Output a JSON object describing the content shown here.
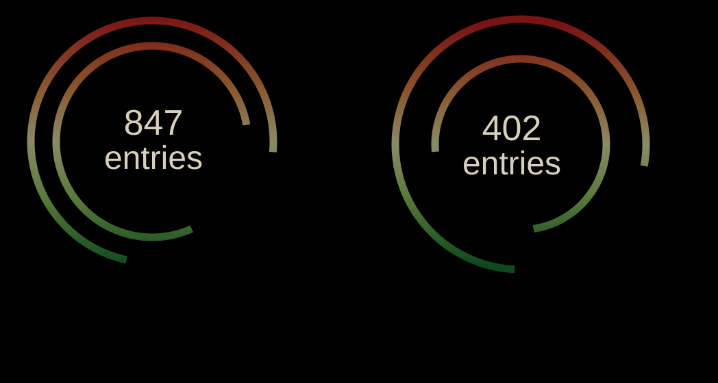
{
  "colors": {
    "background": "#000000",
    "text": "#d8d0bc",
    "gradient_top": "#7a1414",
    "gradient_upper": "#8a5a30",
    "gradient_mid": "#8a8a68",
    "gradient_lower": "#5a7a3c",
    "gradient_bottom": "#0f4a1e"
  },
  "widgets": [
    {
      "count": "847",
      "unit": "entries",
      "rings": [
        {
          "name": "outer",
          "fraction": 0.73
        },
        {
          "name": "inner",
          "fraction": 0.79
        }
      ]
    },
    {
      "count": "402",
      "unit": "entries",
      "rings": [
        {
          "name": "outer",
          "fraction": 0.77
        },
        {
          "name": "inner",
          "fraction": 0.74
        }
      ]
    }
  ]
}
